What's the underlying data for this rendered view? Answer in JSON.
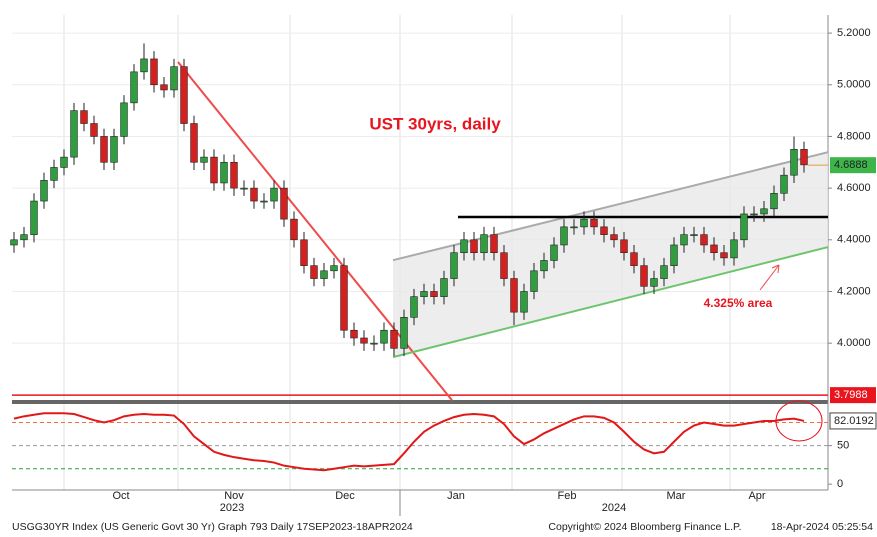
{
  "chart_data": {
    "type": "candlestick",
    "title": "UST 30yrs, daily",
    "annotation": "4.325% area",
    "footer_left": "USGG30YR Index (US Generic Govt 30 Yr) Graph 793  Daily 17SEP2023-18APR2024",
    "footer_mid": "Copyright© 2024 Bloomberg Finance L.P.",
    "footer_right": "18-Apr-2024 05:25:54",
    "years": [
      "2023",
      "2024"
    ],
    "months": [
      "Oct",
      "Nov",
      "Dec",
      "Jan",
      "Feb",
      "Mar",
      "Apr"
    ],
    "month_starts": [
      5,
      16.4,
      27.6,
      38.6,
      49.8,
      60.8,
      71.6
    ],
    "xlim": [
      -0.2,
      81.4
    ],
    "ylim": [
      3.78,
      5.27
    ],
    "yticks": [
      {
        "value": 4.0,
        "label": "4.0000"
      },
      {
        "value": 4.2,
        "label": "4.2000"
      },
      {
        "value": 4.4,
        "label": "4.4000"
      },
      {
        "value": 4.6,
        "label": "4.6000"
      },
      {
        "value": 4.8,
        "label": "4.8000"
      },
      {
        "value": 5.0,
        "label": "5.0000"
      },
      {
        "value": 5.2,
        "label": "5.2000"
      }
    ],
    "up_color": "#2e9e3e",
    "down_color": "#d62020",
    "open": [
      4.38,
      4.4,
      4.42,
      4.55,
      4.63,
      4.68,
      4.72,
      4.9,
      4.85,
      4.8,
      4.7,
      4.8,
      4.93,
      5.05,
      5.1,
      5.0,
      4.98,
      5.07,
      4.85,
      4.7,
      4.72,
      4.62,
      4.7,
      4.6,
      4.6,
      4.55,
      4.55,
      4.6,
      4.48,
      4.4,
      4.3,
      4.25,
      4.28,
      4.3,
      4.05,
      4.02,
      4.0,
      4.0,
      4.05,
      3.98,
      4.1,
      4.18,
      4.2,
      4.18,
      4.25,
      4.35,
      4.4,
      4.35,
      4.42,
      4.35,
      4.25,
      4.12,
      4.2,
      4.28,
      4.32,
      4.38,
      4.45,
      4.45,
      4.48,
      4.45,
      4.42,
      4.4,
      4.35,
      4.3,
      4.22,
      4.25,
      4.3,
      4.38,
      4.42,
      4.42,
      4.38,
      4.35,
      4.33,
      4.4,
      4.5,
      4.5,
      4.52,
      4.58,
      4.65,
      4.75
    ],
    "high": [
      4.43,
      4.45,
      4.58,
      4.66,
      4.71,
      4.75,
      4.93,
      4.93,
      4.88,
      4.83,
      4.83,
      4.96,
      5.08,
      5.16,
      5.13,
      5.03,
      5.1,
      5.1,
      4.88,
      4.75,
      4.75,
      4.73,
      4.73,
      4.63,
      4.63,
      4.58,
      4.63,
      4.63,
      4.51,
      4.43,
      4.33,
      4.31,
      4.33,
      4.33,
      4.08,
      4.05,
      4.03,
      4.08,
      4.08,
      4.13,
      4.21,
      4.23,
      4.23,
      4.28,
      4.38,
      4.43,
      4.43,
      4.45,
      4.45,
      4.38,
      4.28,
      4.23,
      4.31,
      4.35,
      4.41,
      4.48,
      4.48,
      4.51,
      4.51,
      4.48,
      4.45,
      4.43,
      4.38,
      4.33,
      4.28,
      4.33,
      4.41,
      4.45,
      4.45,
      4.45,
      4.41,
      4.38,
      4.43,
      4.53,
      4.53,
      4.55,
      4.61,
      4.68,
      4.8,
      4.78
    ],
    "low": [
      4.35,
      4.37,
      4.39,
      4.52,
      4.6,
      4.65,
      4.69,
      4.82,
      4.77,
      4.67,
      4.67,
      4.77,
      4.9,
      5.02,
      4.97,
      4.95,
      4.95,
      4.82,
      4.67,
      4.67,
      4.59,
      4.59,
      4.57,
      4.57,
      4.52,
      4.52,
      4.52,
      4.45,
      4.37,
      4.27,
      4.22,
      4.22,
      4.25,
      4.02,
      3.99,
      3.97,
      3.97,
      3.97,
      3.95,
      3.95,
      4.07,
      4.15,
      4.15,
      4.15,
      4.22,
      4.32,
      4.32,
      4.32,
      4.32,
      4.22,
      4.07,
      4.09,
      4.17,
      4.25,
      4.29,
      4.35,
      4.42,
      4.42,
      4.42,
      4.39,
      4.37,
      4.32,
      4.27,
      4.19,
      4.19,
      4.22,
      4.27,
      4.35,
      4.39,
      4.35,
      4.32,
      4.3,
      4.3,
      4.37,
      4.47,
      4.47,
      4.49,
      4.55,
      4.62,
      4.66
    ],
    "close": [
      4.4,
      4.42,
      4.55,
      4.63,
      4.68,
      4.72,
      4.9,
      4.85,
      4.8,
      4.7,
      4.8,
      4.93,
      5.05,
      5.1,
      5.0,
      4.98,
      5.07,
      4.85,
      4.7,
      4.72,
      4.62,
      4.7,
      4.6,
      4.6,
      4.55,
      4.55,
      4.6,
      4.48,
      4.4,
      4.3,
      4.25,
      4.28,
      4.3,
      4.05,
      4.02,
      4.0,
      4.0,
      4.05,
      3.98,
      4.1,
      4.18,
      4.2,
      4.18,
      4.25,
      4.35,
      4.4,
      4.35,
      4.42,
      4.35,
      4.25,
      4.12,
      4.2,
      4.28,
      4.32,
      4.38,
      4.45,
      4.45,
      4.48,
      4.45,
      4.42,
      4.4,
      4.35,
      4.3,
      4.22,
      4.25,
      4.3,
      4.38,
      4.42,
      4.42,
      4.38,
      4.35,
      4.33,
      4.4,
      4.5,
      4.5,
      4.52,
      4.58,
      4.65,
      4.75,
      4.69
    ],
    "last_price": 4.6888,
    "low_level": 3.7988,
    "lines": [
      {
        "color": "#f04a4a",
        "x": [
          16.4,
          43.8
        ],
        "y": [
          5.088,
          3.779
        ]
      },
      {
        "color": "#aaaaaa",
        "x": [
          37.9,
          81.4
        ],
        "y": [
          4.321,
          4.739
        ]
      },
      {
        "color": "#6cc56c",
        "x": [
          37.9,
          81.4
        ],
        "y": [
          3.946,
          4.372
        ]
      },
      {
        "color": "#000000",
        "x": [
          44.4,
          81.4
        ],
        "y": [
          4.488,
          4.488
        ]
      }
    ],
    "rsi": {
      "color": "#e01818",
      "ylim": [
        -5,
        104
      ],
      "yticks": [
        0,
        50
      ],
      "levels": [
        {
          "value": 80,
          "color": "#f07040"
        },
        {
          "value": 50,
          "color": "#999999"
        },
        {
          "value": 20,
          "color": "#2e9e3e"
        }
      ],
      "last": 82.0192,
      "values": [
        85,
        88,
        90,
        92,
        92,
        92,
        91,
        87,
        83,
        80,
        83,
        88,
        90,
        91,
        90,
        90,
        89,
        78,
        62,
        52,
        42,
        38,
        35,
        33,
        31,
        30,
        28,
        24,
        22,
        20,
        19,
        18,
        20,
        22,
        24,
        23,
        24,
        25,
        26,
        40,
        55,
        68,
        76,
        82,
        87,
        90,
        91,
        90,
        88,
        78,
        62,
        52,
        58,
        66,
        72,
        78,
        84,
        88,
        88,
        86,
        80,
        68,
        55,
        45,
        40,
        42,
        55,
        68,
        76,
        80,
        78,
        76,
        76,
        78,
        80,
        82,
        82,
        84,
        85,
        82
      ]
    }
  }
}
